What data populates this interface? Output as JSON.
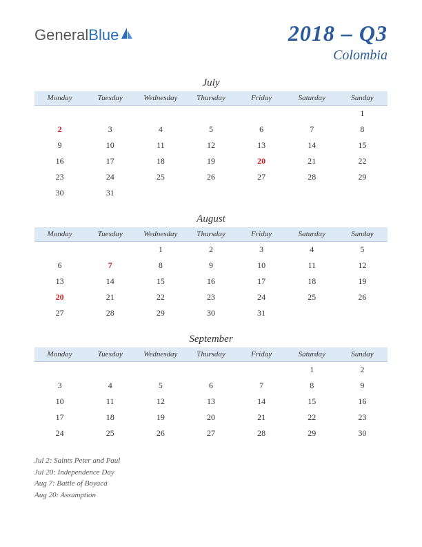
{
  "logo": {
    "part1": "General",
    "part2": "Blue"
  },
  "title": {
    "main": "2018 – Q3",
    "sub": "Colombia"
  },
  "day_headers": [
    "Monday",
    "Tuesday",
    "Wednesday",
    "Thursday",
    "Friday",
    "Saturday",
    "Sunday"
  ],
  "header_bg": "#dde9f5",
  "holiday_color": "#c22",
  "months": [
    {
      "name": "July",
      "weeks": [
        [
          "",
          "",
          "",
          "",
          "",
          "",
          "1"
        ],
        [
          "2",
          "3",
          "4",
          "5",
          "6",
          "7",
          "8"
        ],
        [
          "9",
          "10",
          "11",
          "12",
          "13",
          "14",
          "15"
        ],
        [
          "16",
          "17",
          "18",
          "19",
          "20",
          "21",
          "22"
        ],
        [
          "23",
          "24",
          "25",
          "26",
          "27",
          "28",
          "29"
        ],
        [
          "30",
          "31",
          "",
          "",
          "",
          "",
          ""
        ]
      ],
      "holidays": [
        "2",
        "20"
      ]
    },
    {
      "name": "August",
      "weeks": [
        [
          "",
          "",
          "1",
          "2",
          "3",
          "4",
          "5"
        ],
        [
          "6",
          "7",
          "8",
          "9",
          "10",
          "11",
          "12"
        ],
        [
          "13",
          "14",
          "15",
          "16",
          "17",
          "18",
          "19"
        ],
        [
          "20",
          "21",
          "22",
          "23",
          "24",
          "25",
          "26"
        ],
        [
          "27",
          "28",
          "29",
          "30",
          "31",
          "",
          ""
        ]
      ],
      "holidays": [
        "7",
        "20"
      ]
    },
    {
      "name": "September",
      "weeks": [
        [
          "",
          "",
          "",
          "",
          "",
          "1",
          "2"
        ],
        [
          "3",
          "4",
          "5",
          "6",
          "7",
          "8",
          "9"
        ],
        [
          "10",
          "11",
          "12",
          "13",
          "14",
          "15",
          "16"
        ],
        [
          "17",
          "18",
          "19",
          "20",
          "21",
          "22",
          "23"
        ],
        [
          "24",
          "25",
          "26",
          "27",
          "28",
          "29",
          "30"
        ]
      ],
      "holidays": []
    }
  ],
  "notes": [
    "Jul 2: Saints Peter and Paul",
    "Jul 20: Independence Day",
    "Aug 7: Battle of Boyacá",
    "Aug 20: Assumption"
  ]
}
